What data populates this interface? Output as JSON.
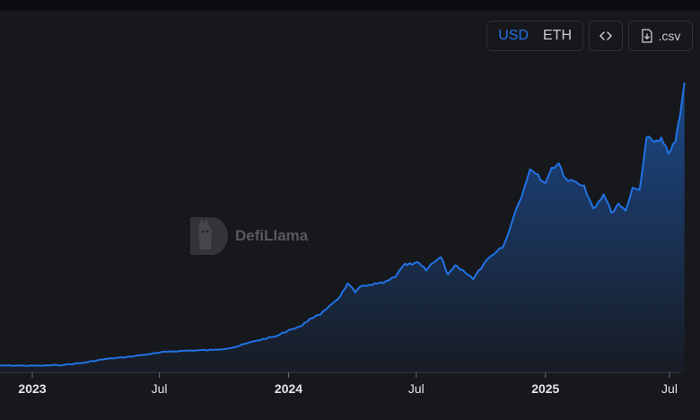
{
  "toolbar": {
    "currency_usd": "USD",
    "currency_eth": "ETH",
    "embed_icon": "code-icon",
    "csv_label": ".csv",
    "csv_icon": "download-file-icon"
  },
  "watermark": {
    "text": "DefiLlama",
    "logo_icon": "llama-logo-icon"
  },
  "colors": {
    "line": "#2172e5",
    "background": "#17181c",
    "axis_text": "#e2e4e9"
  },
  "chart_data": {
    "type": "area",
    "x_ticks": [
      "2023",
      "Jul",
      "2024",
      "Jul",
      "2025",
      "Jul"
    ],
    "x_tick_dates": [
      "2023-01-01",
      "2023-07-01",
      "2024-01-01",
      "2024-07-01",
      "2025-01-01",
      "2025-07-01"
    ],
    "bold_ticks": [
      "2023",
      "2024",
      "2025"
    ],
    "y_axis_labels": false,
    "grid": false,
    "series": [
      {
        "values": [
          [
            "2022-11-01",
            1.0
          ],
          [
            "2022-12-15",
            0.98
          ],
          [
            "2023-01-15",
            0.95
          ],
          [
            "2023-02-15",
            1.3
          ],
          [
            "2023-03-15",
            2.2
          ],
          [
            "2023-04-15",
            3.8
          ],
          [
            "2023-05-15",
            4.6
          ],
          [
            "2023-06-15",
            5.8
          ],
          [
            "2023-07-15",
            7.0
          ],
          [
            "2023-08-15",
            7.4
          ],
          [
            "2023-09-15",
            7.6
          ],
          [
            "2023-10-15",
            8.7
          ],
          [
            "2023-11-15",
            11.5
          ],
          [
            "2023-12-15",
            13.5
          ],
          [
            "2024-01-01",
            16.0
          ],
          [
            "2024-01-20",
            17.9
          ],
          [
            "2024-02-01",
            21.0
          ],
          [
            "2024-02-15",
            22.5
          ],
          [
            "2024-02-28",
            26.3
          ],
          [
            "2024-03-15",
            30.5
          ],
          [
            "2024-03-25",
            35.8
          ],
          [
            "2024-04-05",
            32.0
          ],
          [
            "2024-04-15",
            34.8
          ],
          [
            "2024-04-25",
            35.3
          ],
          [
            "2024-05-15",
            36.0
          ],
          [
            "2024-06-01",
            38.5
          ],
          [
            "2024-06-15",
            44.2
          ],
          [
            "2024-06-25",
            43.8
          ],
          [
            "2024-07-05",
            44.5
          ],
          [
            "2024-07-15",
            41.3
          ],
          [
            "2024-07-25",
            44.5
          ],
          [
            "2024-08-05",
            47.0
          ],
          [
            "2024-08-15",
            39.6
          ],
          [
            "2024-08-25",
            43.5
          ],
          [
            "2024-09-05",
            41.6
          ],
          [
            "2024-09-20",
            37.6
          ],
          [
            "2024-10-05",
            44.0
          ],
          [
            "2024-10-20",
            48.3
          ],
          [
            "2024-11-01",
            51.0
          ],
          [
            "2024-11-10",
            57.7
          ],
          [
            "2024-11-20",
            67.0
          ],
          [
            "2024-12-01",
            75.4
          ],
          [
            "2024-12-10",
            84.2
          ],
          [
            "2024-12-18",
            82.3
          ],
          [
            "2025-01-01",
            78.4
          ],
          [
            "2025-01-10",
            84.9
          ],
          [
            "2025-01-20",
            86.8
          ],
          [
            "2025-01-30",
            80.3
          ],
          [
            "2025-02-10",
            79.3
          ],
          [
            "2025-02-25",
            77.4
          ],
          [
            "2025-03-10",
            67.7
          ],
          [
            "2025-03-25",
            73.6
          ],
          [
            "2025-04-05",
            65.8
          ],
          [
            "2025-04-15",
            69.7
          ],
          [
            "2025-04-25",
            66.7
          ],
          [
            "2025-05-05",
            76.4
          ],
          [
            "2025-05-15",
            75.4
          ],
          [
            "2025-05-25",
            97.7
          ],
          [
            "2025-06-05",
            95.8
          ],
          [
            "2025-06-15",
            97.7
          ],
          [
            "2025-06-25",
            90.9
          ],
          [
            "2025-07-05",
            95.8
          ],
          [
            "2025-07-12",
            107.5
          ],
          [
            "2025-07-18",
            121.0
          ]
        ]
      }
    ]
  }
}
